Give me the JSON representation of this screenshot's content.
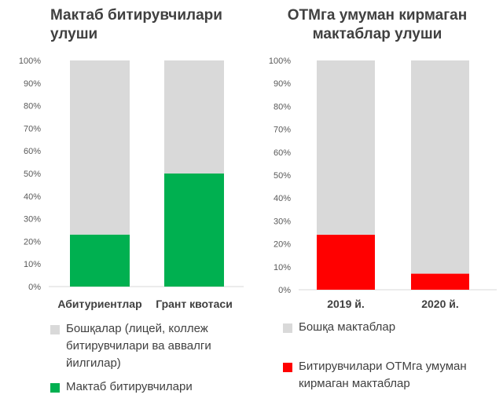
{
  "colors": {
    "other": "#d9d9d9",
    "school_grads": "#00b050",
    "schools_none": "#ff0000",
    "text": "#404040",
    "grid": "#d9d9d9"
  },
  "chart_data": [
    {
      "type": "bar",
      "stacked": true,
      "title_lines": [
        "Мактаб битирувчилари",
        "улуши"
      ],
      "categories": [
        "Абитуриентлар",
        "Грант квотаси"
      ],
      "ylim": [
        0,
        100
      ],
      "yticks": [
        "0%",
        "10%",
        "20%",
        "30%",
        "40%",
        "50%",
        "60%",
        "70%",
        "80%",
        "90%",
        "100%"
      ],
      "grid": false,
      "legend_position": "bottom",
      "series": [
        {
          "name": "Мактаб битирувчилари",
          "values": [
            23,
            50
          ],
          "color": "#00b050"
        },
        {
          "name_lines": [
            "Бошқалар (лицей, коллеж",
            "битирувчилари ва аввалги",
            "йилгилар)"
          ],
          "values": [
            77,
            50
          ],
          "color": "#d9d9d9"
        }
      ]
    },
    {
      "type": "bar",
      "stacked": true,
      "title_lines": [
        "ОТМга умуман кирмаган",
        "мактаблар улуши"
      ],
      "categories": [
        "2019 й.",
        "2020 й."
      ],
      "ylim": [
        0,
        100
      ],
      "yticks": [
        "0%",
        "10%",
        "20%",
        "30%",
        "40%",
        "50%",
        "60%",
        "70%",
        "80%",
        "90%",
        "100%"
      ],
      "grid": false,
      "legend_position": "bottom",
      "series": [
        {
          "name_lines": [
            "Битирувчилари ОТМга умуман",
            "кирмаган мактаблар"
          ],
          "values": [
            24,
            7
          ],
          "color": "#ff0000"
        },
        {
          "name": "Бошқа мактаблар",
          "values": [
            76,
            93
          ],
          "color": "#d9d9d9"
        }
      ]
    }
  ]
}
